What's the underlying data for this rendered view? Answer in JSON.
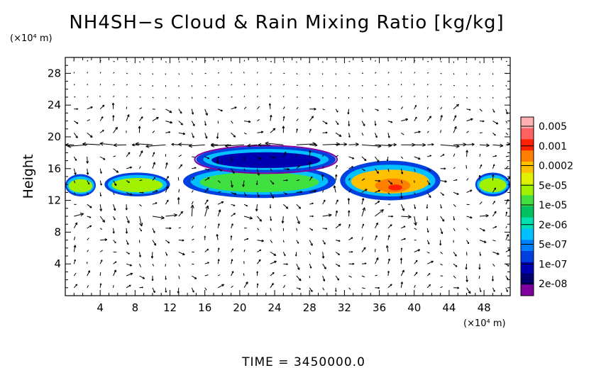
{
  "chart_data": {
    "type": "heatmap",
    "title": "NH4SH−s Cloud & Rain Mixing Ratio [kg/kg]",
    "ylabel": "Height",
    "y_unit": "(×10⁴ m)",
    "x_unit": "(×10⁴ m)",
    "footer": "TIME = 3450000.0",
    "xlim": [
      0,
      51
    ],
    "ylim": [
      0,
      30
    ],
    "x_ticks": [
      4,
      8,
      12,
      16,
      20,
      24,
      28,
      32,
      36,
      40,
      44,
      48
    ],
    "y_ticks": [
      4,
      8,
      12,
      16,
      20,
      24,
      28
    ],
    "vectors_overlay": true,
    "colorbar": {
      "labels": [
        "0.005",
        "0.001",
        "0.0002",
        "5e-05",
        "1e-05",
        "2e-06",
        "5e-07",
        "1e-07",
        "2e-08"
      ],
      "colors": [
        "#ffb0b0",
        "#ff6060",
        "#ff2000",
        "#ff8000",
        "#ffc000",
        "#e0f000",
        "#a0f000",
        "#40e040",
        "#00c060",
        "#00e0b0",
        "#00c0ff",
        "#0080ff",
        "#0040e0",
        "#0000b0",
        "#000070",
        "#8000a0"
      ]
    },
    "regions": [
      {
        "x": [
          0,
          3.5
        ],
        "y": [
          12.5,
          15.3
        ],
        "level": "5e-05"
      },
      {
        "x": [
          4.5,
          12
        ],
        "y": [
          12.5,
          15.5
        ],
        "level": "5e-05"
      },
      {
        "x": [
          13.5,
          31
        ],
        "y": [
          12.3,
          16.5
        ],
        "level": "1e-05"
      },
      {
        "x": [
          15,
          31
        ],
        "y": [
          15.5,
          18.8
        ],
        "level": "1e-07"
      },
      {
        "x": [
          31.5,
          43
        ],
        "y": [
          12,
          17
        ],
        "level": "0.0002"
      },
      {
        "x": [
          47,
          51
        ],
        "y": [
          12.5,
          15.5
        ],
        "level": "5e-05"
      }
    ]
  }
}
